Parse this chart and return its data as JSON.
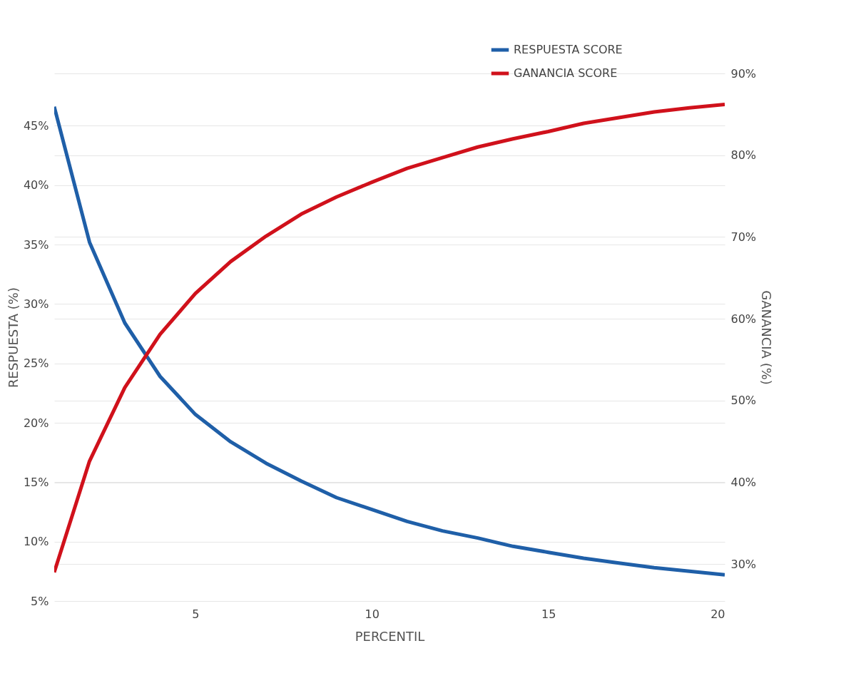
{
  "chart_data": {
    "type": "line",
    "xlabel": "PERCENTIL",
    "ylabel": "RESPUESTA (%)",
    "y2label": "GANANCIA (%)",
    "x": [
      1,
      2,
      3,
      4,
      5,
      6,
      7,
      8,
      9,
      10,
      11,
      12,
      13,
      14,
      15,
      16,
      17,
      18,
      19,
      20
    ],
    "series": [
      {
        "name": "RESPUESTA SCORE",
        "color": "#1f5fa8",
        "values": [
          46.6,
          35.2,
          28.4,
          23.9,
          20.7,
          18.4,
          16.6,
          15.1,
          13.7,
          12.7,
          11.7,
          10.9,
          10.3,
          9.6,
          9.1,
          8.6,
          8.2,
          7.8,
          7.5,
          7.2
        ]
      },
      {
        "name": "GANANCIA SCORE",
        "color": "#d0111b",
        "axis": "y2",
        "values": [
          29.0,
          42.6,
          51.6,
          58.1,
          63.1,
          67.0,
          70.1,
          72.8,
          74.9,
          76.7,
          78.4,
          79.7,
          81.0,
          82.0,
          82.9,
          83.9,
          84.6,
          85.3,
          85.8,
          86.2
        ]
      }
    ],
    "xlim": [
      1,
      20
    ],
    "xticks": [
      5,
      10,
      15,
      20
    ],
    "ylim": [
      5,
      49.4
    ],
    "yticks": [
      {
        "value": 5,
        "label": "5%"
      },
      {
        "value": 10,
        "label": "10%"
      },
      {
        "value": 15,
        "label": "15%"
      },
      {
        "value": 20,
        "label": "20%"
      },
      {
        "value": 25,
        "label": "25%"
      },
      {
        "value": 30,
        "label": "30%"
      },
      {
        "value": 35,
        "label": "35%"
      },
      {
        "value": 40,
        "label": "40%"
      },
      {
        "value": 45,
        "label": "45%"
      }
    ],
    "y2lim": [
      25.5,
      90
    ],
    "y2ticks": [
      {
        "value": 30,
        "label": "30%"
      },
      {
        "value": 40,
        "label": "40%"
      },
      {
        "value": 50,
        "label": "50%"
      },
      {
        "value": 60,
        "label": "60%"
      },
      {
        "value": 70,
        "label": "70%"
      },
      {
        "value": 80,
        "label": "80%"
      },
      {
        "value": 90,
        "label": "90%"
      }
    ],
    "grid": "y",
    "legend": "top right",
    "marker": "none",
    "line_style": "solid"
  }
}
